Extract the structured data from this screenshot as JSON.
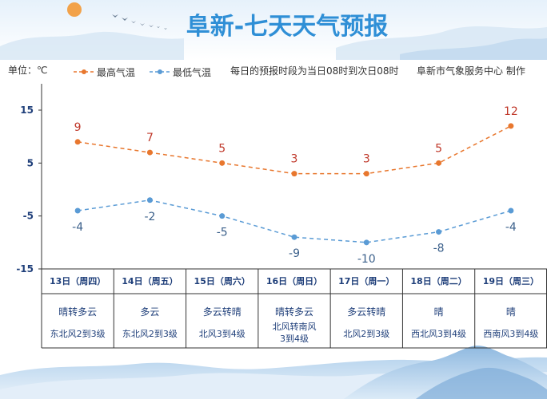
{
  "header": {
    "title": "阜新-七天天气预报",
    "unit_label": "单位：℃",
    "note": "每日的预报时段为当日08时到次日08时",
    "credit": "阜新市气象服务中心 制作"
  },
  "colors": {
    "high_line": "#e8772e",
    "low_line": "#5a9bd5",
    "title": "#2f8fd6"
  },
  "chart_data": {
    "type": "line",
    "x": [
      "13日（周四）",
      "14日（周五）",
      "15日（周六）",
      "16日（周日）",
      "17日（周一）",
      "18日（周二）",
      "19日（周三）"
    ],
    "series": [
      {
        "name": "最高气温",
        "values": [
          9,
          7,
          5,
          3,
          3,
          5,
          12
        ]
      },
      {
        "name": "最低气温",
        "values": [
          -4,
          -2,
          -5,
          -9,
          -10,
          -8,
          -4
        ]
      }
    ],
    "yticks": [
      "15",
      "5",
      "-5",
      "-15"
    ],
    "ylim": [
      -15,
      15
    ],
    "grid": false,
    "legend": "top"
  },
  "days": [
    {
      "weather": "晴转多云",
      "wind": [
        "东北风2到3级"
      ]
    },
    {
      "weather": "多云",
      "wind": [
        "东北风2到3级"
      ]
    },
    {
      "weather": "多云转晴",
      "wind": [
        "北风3到4级"
      ]
    },
    {
      "weather": "晴转多云",
      "wind": [
        "北风转南风",
        "3到4级"
      ]
    },
    {
      "weather": "多云转晴",
      "wind": [
        "北风2到3级"
      ]
    },
    {
      "weather": "晴",
      "wind": [
        "西北风3到4级"
      ]
    },
    {
      "weather": "晴",
      "wind": [
        "西南风3到4级"
      ]
    }
  ]
}
